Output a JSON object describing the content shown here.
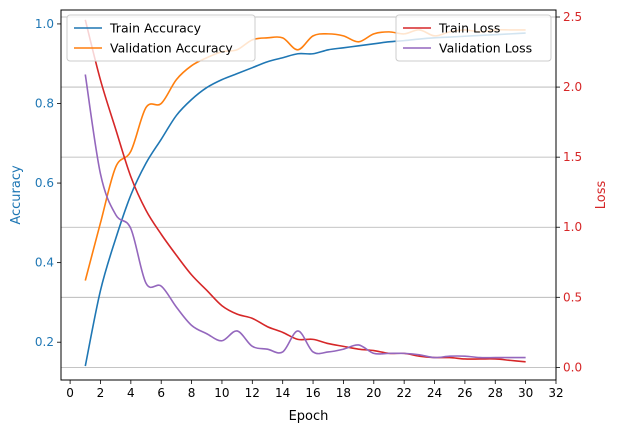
{
  "chart_data": {
    "type": "line",
    "xlabel": "Epoch",
    "ylabel_left": "Accuracy",
    "ylabel_right": "Loss",
    "xlim": [
      -0.6,
      32
    ],
    "ylim_left": [
      0.105,
      1.035
    ],
    "ylim_right": [
      -0.09,
      2.55
    ],
    "x_ticks": [
      0,
      2,
      4,
      6,
      8,
      10,
      12,
      14,
      16,
      18,
      20,
      22,
      24,
      26,
      28,
      30,
      32
    ],
    "y_ticks_left": [
      0.2,
      0.4,
      0.6,
      0.8,
      1.0
    ],
    "y_tick_labels_left": [
      "0.2",
      "0.4",
      "0.6",
      "0.8",
      "1.0"
    ],
    "y_ticks_right": [
      0.0,
      0.5,
      1.0,
      1.5,
      2.0,
      2.5
    ],
    "y_tick_labels_right": [
      "0.0",
      "0.5",
      "1.0",
      "1.5",
      "2.0",
      "2.5"
    ],
    "grid": "horizontal lines at right-axis ticks",
    "left_axis_color": "#1f77b4",
    "right_axis_color": "#d62728",
    "legend_left_placement": "top-left",
    "legend_right_placement": "top-right",
    "x": [
      1,
      2,
      3,
      4,
      5,
      6,
      7,
      8,
      9,
      10,
      11,
      12,
      13,
      14,
      15,
      16,
      17,
      18,
      19,
      20,
      21,
      22,
      23,
      24,
      25,
      26,
      27,
      28,
      29,
      30
    ],
    "series_left": [
      {
        "name": "Train Accuracy",
        "color": "#1f77b4",
        "values": [
          0.14,
          0.33,
          0.46,
          0.57,
          0.65,
          0.71,
          0.77,
          0.81,
          0.84,
          0.86,
          0.875,
          0.89,
          0.905,
          0.915,
          0.925,
          0.925,
          0.935,
          0.94,
          0.945,
          0.95,
          0.955,
          0.958,
          0.962,
          0.965,
          0.967,
          0.969,
          0.971,
          0.973,
          0.975,
          0.977
        ]
      },
      {
        "name": "Validation Accuracy",
        "color": "#ff7f0e",
        "values": [
          0.355,
          0.5,
          0.64,
          0.68,
          0.79,
          0.8,
          0.86,
          0.895,
          0.915,
          0.93,
          0.935,
          0.96,
          0.965,
          0.965,
          0.935,
          0.97,
          0.975,
          0.97,
          0.955,
          0.975,
          0.98,
          0.975,
          0.985,
          0.97,
          0.98,
          0.985,
          0.98,
          0.985,
          0.985,
          0.985
        ]
      }
    ],
    "series_right": [
      {
        "name": "Train Loss",
        "color": "#d62728",
        "values": [
          2.48,
          2.05,
          1.7,
          1.36,
          1.12,
          0.95,
          0.8,
          0.66,
          0.55,
          0.44,
          0.38,
          0.35,
          0.29,
          0.25,
          0.2,
          0.2,
          0.17,
          0.15,
          0.13,
          0.12,
          0.1,
          0.1,
          0.08,
          0.07,
          0.07,
          0.06,
          0.06,
          0.06,
          0.05,
          0.04
        ]
      },
      {
        "name": "Validation Loss",
        "color": "#9467bd",
        "values": [
          2.09,
          1.38,
          1.09,
          0.99,
          0.6,
          0.58,
          0.43,
          0.3,
          0.24,
          0.19,
          0.26,
          0.15,
          0.13,
          0.11,
          0.26,
          0.11,
          0.11,
          0.13,
          0.16,
          0.1,
          0.1,
          0.1,
          0.09,
          0.07,
          0.08,
          0.08,
          0.07,
          0.07,
          0.07,
          0.07
        ]
      }
    ]
  }
}
